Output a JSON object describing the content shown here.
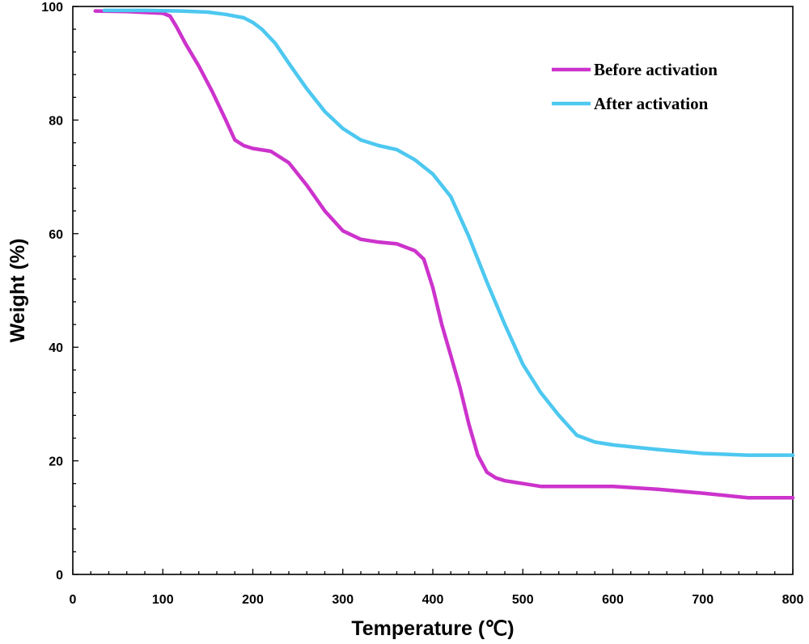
{
  "chart_data": {
    "type": "line",
    "title": "",
    "xlabel": "Temperature (℃)",
    "ylabel": "Weight (%)",
    "xlim": [
      0,
      800
    ],
    "ylim": [
      0,
      100
    ],
    "xticks": [
      0,
      100,
      200,
      300,
      400,
      500,
      600,
      700,
      800
    ],
    "yticks": [
      0,
      20,
      40,
      60,
      80,
      100
    ],
    "xtick_labels": [
      "0",
      "100",
      "200",
      "300",
      "400",
      "500",
      "600",
      "700",
      "800"
    ],
    "ytick_labels": [
      "0",
      "20",
      "40",
      "60",
      "80",
      "100"
    ],
    "grid": false,
    "legend_position": "top-right",
    "series": [
      {
        "name": "Before activation",
        "color": "#cc33cc",
        "x": [
          25,
          60,
          100,
          108,
          115,
          125,
          140,
          155,
          170,
          180,
          190,
          200,
          220,
          240,
          260,
          280,
          300,
          320,
          340,
          360,
          380,
          390,
          400,
          410,
          420,
          430,
          440,
          450,
          460,
          470,
          480,
          500,
          520,
          550,
          600,
          650,
          700,
          750,
          800
        ],
        "y": [
          99.2,
          99.1,
          98.8,
          98.3,
          96.5,
          93.5,
          89.5,
          85,
          80,
          76.5,
          75.5,
          75,
          74.5,
          72.5,
          68.5,
          64,
          60.5,
          59,
          58.5,
          58.2,
          57,
          55.5,
          50.5,
          44,
          38.5,
          33,
          26.5,
          21,
          18,
          17,
          16.5,
          16,
          15.5,
          15.5,
          15.5,
          15,
          14.3,
          13.5,
          13.5
        ]
      },
      {
        "name": "After activation",
        "color": "#4dc8f0",
        "x": [
          35,
          80,
          120,
          150,
          170,
          190,
          200,
          210,
          225,
          240,
          260,
          280,
          300,
          320,
          340,
          360,
          380,
          400,
          420,
          440,
          460,
          480,
          500,
          520,
          540,
          560,
          580,
          600,
          650,
          700,
          750,
          800
        ],
        "y": [
          99.3,
          99.3,
          99.2,
          99,
          98.6,
          98,
          97.2,
          96,
          93.5,
          90,
          85.5,
          81.5,
          78.5,
          76.5,
          75.5,
          74.8,
          73,
          70.5,
          66.5,
          59.5,
          51.5,
          44,
          37,
          32,
          28,
          24.5,
          23.3,
          22.8,
          22,
          21.3,
          21,
          21
        ]
      }
    ]
  }
}
